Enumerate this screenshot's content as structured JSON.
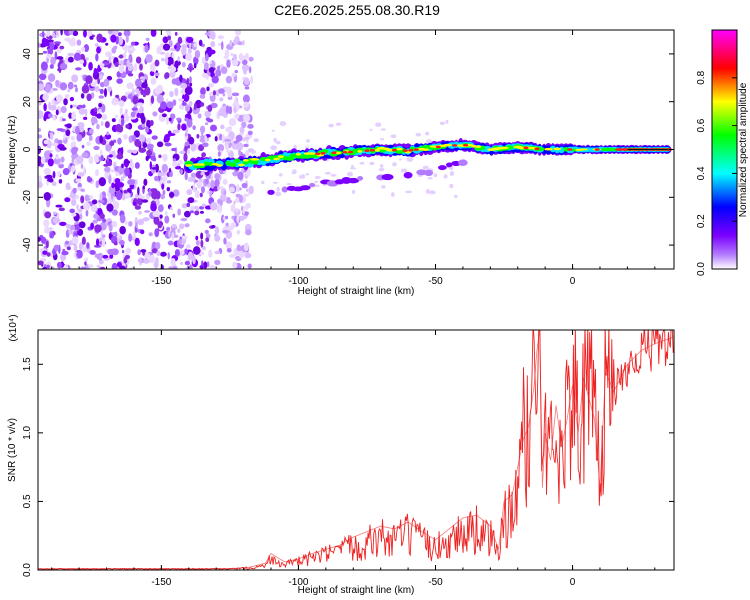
{
  "title": "C2E6.2025.255.08.30.R19",
  "chart_data": [
    {
      "type": "heatmap",
      "title": "C2E6.2025.255.08.30.R19",
      "xlabel": "Height of straight line (km)",
      "ylabel": "Frequency (Hz)",
      "xlim": [
        -195,
        37
      ],
      "ylim": [
        -50,
        50
      ],
      "xticks": [
        -150,
        -100,
        -50,
        0
      ],
      "yticks": [
        40,
        20,
        0,
        -20,
        -40
      ],
      "colorbar": {
        "label": "Normalized spectral amplitude",
        "range": [
          0,
          1
        ],
        "ticks": [
          "0.0",
          "0.2",
          "0.4",
          "0.6",
          "0.8"
        ],
        "colors": [
          "#ffffff",
          "#7b00ff",
          "#0000ff",
          "#00ffff",
          "#00ff00",
          "#ffff00",
          "#ff0000",
          "#ff00ff"
        ]
      },
      "ridge": [
        {
          "x": -140,
          "y": -6.5
        },
        {
          "x": -130,
          "y": -6
        },
        {
          "x": -120,
          "y": -5.5
        },
        {
          "x": -110,
          "y": -4
        },
        {
          "x": -100,
          "y": -2.5
        },
        {
          "x": -90,
          "y": -1.5
        },
        {
          "x": -80,
          "y": -1
        },
        {
          "x": -70,
          "y": 0
        },
        {
          "x": -60,
          "y": -0.5
        },
        {
          "x": -50,
          "y": 1
        },
        {
          "x": -40,
          "y": 2
        },
        {
          "x": -30,
          "y": 0
        },
        {
          "x": -20,
          "y": 1
        },
        {
          "x": -10,
          "y": 0
        },
        {
          "x": 0,
          "y": 0
        },
        {
          "x": 10,
          "y": 0
        },
        {
          "x": 20,
          "y": 0
        },
        {
          "x": 35,
          "y": 0
        }
      ],
      "secondary_branch": [
        {
          "x": -110,
          "y": -18
        },
        {
          "x": -90,
          "y": -14
        },
        {
          "x": -75,
          "y": -12
        },
        {
          "x": -60,
          "y": -11
        },
        {
          "x": -50,
          "y": -9
        },
        {
          "x": -40,
          "y": -5
        }
      ],
      "noise_region_xmax": -120
    },
    {
      "type": "line",
      "xlabel": "Height of straight line (km)",
      "ylabel": "SNR (10 * v/v)",
      "y_multiplier": "(x10⁴)",
      "xlim": [
        -195,
        37
      ],
      "ylim": [
        0,
        1.75
      ],
      "xticks": [
        -150,
        -100,
        -50,
        0
      ],
      "yticks": [
        0.0,
        0.5,
        1.0,
        1.5
      ],
      "series": [
        {
          "color": "#ee2222",
          "x": [
            -195,
            -180,
            -165,
            -150,
            -135,
            -125,
            -118,
            -112,
            -110,
            -105,
            -100,
            -95,
            -90,
            -85,
            -80,
            -75,
            -70,
            -65,
            -60,
            -55,
            -50,
            -45,
            -40,
            -35,
            -30,
            -27,
            -25,
            -22,
            -20,
            -18,
            -16,
            -14,
            -13,
            -12,
            -11,
            -10,
            -8,
            -6,
            -4,
            -2,
            0,
            2,
            4,
            6,
            8,
            10,
            12,
            15,
            20,
            25,
            30,
            37
          ],
          "y": [
            0.01,
            0.01,
            0.01,
            0.01,
            0.01,
            0.01,
            0.02,
            0.05,
            0.12,
            0.06,
            0.08,
            0.12,
            0.15,
            0.18,
            0.24,
            0.28,
            0.32,
            0.3,
            0.35,
            0.28,
            0.22,
            0.3,
            0.38,
            0.4,
            0.32,
            0.15,
            0.5,
            0.55,
            0.75,
            0.95,
            1.05,
            1.35,
            1.6,
            1.75,
            0.6,
            1.0,
            0.8,
            1.2,
            0.9,
            1.1,
            1.35,
            1.0,
            1.4,
            1.25,
            1.1,
            0.6,
            1.45,
            1.3,
            1.5,
            1.6,
            1.65,
            1.7
          ]
        }
      ]
    }
  ]
}
